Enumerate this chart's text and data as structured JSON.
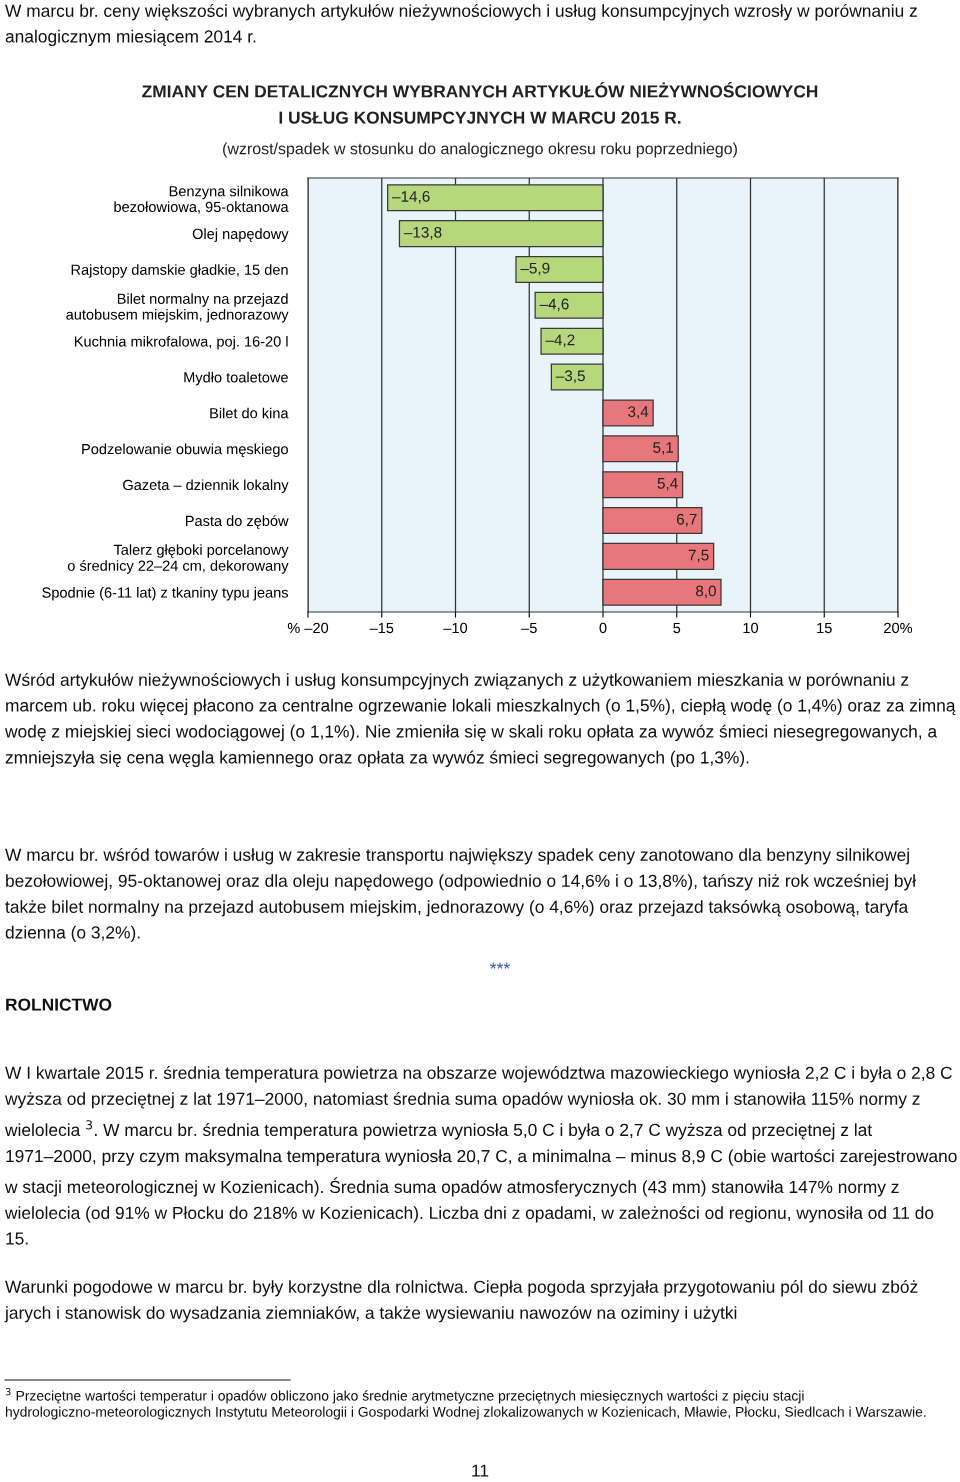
{
  "chart_data": {
    "type": "bar",
    "orientation": "horizontal",
    "title": "ZMIANY CEN DETALICZNYCH WYBRANYCH ARTYKUŁÓW NIEŻYWNOŚCIOWYCH\nI USŁUG KONSUMPCYJNYCH W MARCU 2015 R.",
    "subtitle": "(wzrost/spadek w stosunku do analogicznego okresu roku poprzedniego)",
    "categories": [
      "Benzyna silnikowa\nbezołowiowa, 95-oktanowa",
      "Olej napędowy",
      "Rajstopy damskie gładkie, 15 den",
      "Bilet normalny na przejazd\nautobusem miejskim, jednorazowy",
      "Kuchnia mikrofalowa, poj. 16-20 l",
      "Mydło toaletowe",
      "Bilet do kina",
      "Podzelowanie obuwia męskiego",
      "Gazeta – dziennik lokalny",
      "Pasta do zębów",
      "Talerz głęboki porcelanowy\no średnicy 22–24 cm, dekorowany",
      "Spodnie (6-11 lat) z tkaniny typu jeans"
    ],
    "values": [
      -14.6,
      -13.8,
      -5.9,
      -4.6,
      -4.2,
      -3.5,
      3.4,
      5.1,
      5.4,
      6.7,
      7.5,
      8.0
    ],
    "value_labels": [
      "–14,6",
      "–13,8",
      "–5,9",
      "–4,6",
      "–4,2",
      "–3,5",
      "3,4",
      "5,1",
      "5,4",
      "6,7",
      "7,5",
      "8,0"
    ],
    "colors": [
      "#b6d77c",
      "#b6d77c",
      "#b6d77c",
      "#b6d77c",
      "#b6d77c",
      "#b6d77c",
      "#e8777b",
      "#e8777b",
      "#e8777b",
      "#e8777b",
      "#e8777b",
      "#e8777b"
    ],
    "xlim": [
      -20,
      20
    ],
    "xticks": [
      {
        "value": -20,
        "label": "% –20"
      },
      {
        "value": -15,
        "label": "–15"
      },
      {
        "value": -10,
        "label": "–10"
      },
      {
        "value": -5,
        "label": "–5"
      },
      0,
      5,
      10,
      15,
      {
        "value": 20,
        "label": "20%"
      }
    ],
    "grid": "x",
    "annotations": [
      "W marcu br. ceny większości wybranych artykułów nieżywnościowych i usług konsumpcyjnych wzrosły w porównaniu z analogicznym miesiącem 2014 r.",
      "Wśród artykułów nieżywnościowych i usług konsumpcyjnych związanych z użytkowaniem mieszkania w porównaniu z marcem ub. roku więcej płacono za centralne ogrzewanie lokali mieszkalnych (o 1,5%), ciepłą wodę (o 1,4%) oraz za zimną wodę z miejskiej sieci wodociągowej (o 1,1%). Nie zmieniła się w skali roku opłata za wywóz śmieci niesegregowanych, a zmniejszyła się cena węgla kamiennego oraz opłata za wywóz śmieci segregowanych (po 1,3%).",
      "W marcu br. wśród towarów i usług w zakresie transportu największy spadek ceny zanotowano dla benzyny silnikowej bezołowiowej, 95-oktanowej oraz dla oleju napędowego (odpowiednio o 14,6% i o 13,8%), tańszy niż rok wcześniej był także bilet normalny na przejazd autobusem miejskim, jednorazowy (o 4,6%) oraz przejazd taksówką osobową, taryfa dzienna (o 3,2%).",
      "***",
      "ROLNICTWO",
      "W I kwartale 2015 r. średnia temperatura powietrza na obszarze województwa mazowieckiego wyniosła 2,2 C i była o 2,8 C wyższa od przeciętnej z lat 1971–2000, natomiast średnia suma opadów wyniosła ok. 30 mm i stanowiła 115% normy z wielolecia $^{3}$. W marcu br. średnia temperatura powietrza wyniosła 5,0 C i była o 2,7 C wyższa od przeciętnej z lat 1971–2000, przy czym maksymalna temperatura wyniosła 20,7 C, a minimalna – minus 8,9 C (obie wartości zarejestrowano w stacji meteorologicznej w Kozienicach). Średnia suma opadów atmosferycznych (43 mm) stanowiła 147% normy z wielolecia (od 91% w Płocku do 218% w Kozienicach). Liczba dni z opadami, w zależności od regionu, wynosiła od 11 do 15.",
      "Warunki pogodowe w marcu br. były korzystne dla rolnictwa. Ciepła pogoda sprzyjała przygotowaniu pól do siewu zbóż jarych i stanowisk do wysadzania ziemniaków, a także wysiewaniu nawozów na oziminy i użytki",
      "$^{3}$ Przeciętne wartości temperatur i opadów obliczono jako średnie arytmetyczne przeciętnych miesięcznych wartości z pięciu stacji hydrologiczno-meteorologicznych Instytutu Meteorologii i Gospodarki Wodnej zlokalizowanych w Kozienicach, Mławie, Płocku, Siedlcach i Warszawie.",
      "11"
    ]
  }
}
